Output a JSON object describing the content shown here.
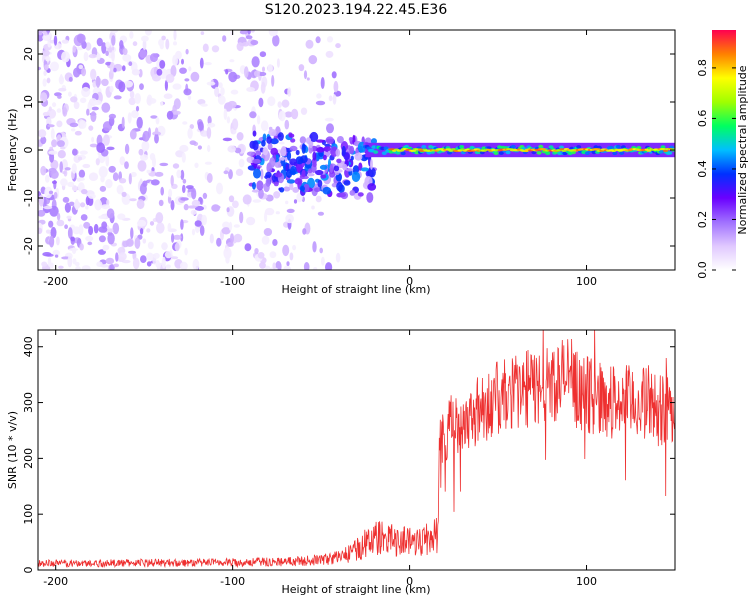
{
  "title": "S120.2023.194.22.45.E36",
  "chart_data": [
    {
      "type": "heatmap",
      "xlabel": "Height of straight line (km)",
      "ylabel": "Frequency (Hz)",
      "xlim": [
        -210,
        150
      ],
      "ylim": [
        -25,
        25
      ],
      "xticks": [
        -200,
        -100,
        0,
        100
      ],
      "yticks": [
        -20,
        -10,
        0,
        10,
        20
      ],
      "colorbar": {
        "label": "Normalized spectral amplitude",
        "range": [
          0.0,
          0.95
        ],
        "ticks": [
          0.0,
          0.2,
          0.4,
          0.6,
          0.8
        ],
        "colormap": [
          "#ffffff",
          "#e0c8ff",
          "#a070ff",
          "#6a00ff",
          "#0030ff",
          "#00bfff",
          "#00ff60",
          "#a0ff00",
          "#ffff00",
          "#ff8000",
          "#ff0050"
        ]
      },
      "features": [
        {
          "x_range": [
            -210,
            -40
          ],
          "frequency_range": [
            -25,
            25
          ],
          "amplitude_range": [
            0.0,
            0.2
          ]
        },
        {
          "x_range": [
            -90,
            -20
          ],
          "frequency_range": [
            -10,
            5
          ],
          "amplitude_range": [
            0.1,
            0.45
          ]
        },
        {
          "x_range": [
            -25,
            150
          ],
          "frequency_range": [
            -1.5,
            1.5
          ],
          "amplitude_range": [
            0.2,
            0.9
          ]
        }
      ]
    },
    {
      "type": "line",
      "xlabel": "Height of straight line (km)",
      "ylabel": "SNR (10 * v/v)",
      "xlim": [
        -210,
        150
      ],
      "ylim": [
        0,
        430
      ],
      "xticks": [
        -200,
        -100,
        0,
        100
      ],
      "yticks": [
        0,
        100,
        200,
        300,
        400
      ],
      "series": [
        {
          "color": "#ee3030",
          "x": [
            -210,
            -180,
            -150,
            -120,
            -90,
            -60,
            -45,
            -35,
            -28,
            -22,
            -18,
            -12,
            -5,
            0,
            8,
            14,
            16,
            17,
            20,
            30,
            45,
            60,
            75,
            85,
            90,
            95,
            110,
            130,
            150
          ],
          "y": [
            12,
            12,
            13,
            13,
            14,
            16,
            20,
            28,
            40,
            55,
            58,
            55,
            52,
            52,
            55,
            60,
            65,
            230,
            250,
            270,
            300,
            320,
            330,
            340,
            350,
            320,
            305,
            300,
            290
          ]
        }
      ]
    }
  ]
}
